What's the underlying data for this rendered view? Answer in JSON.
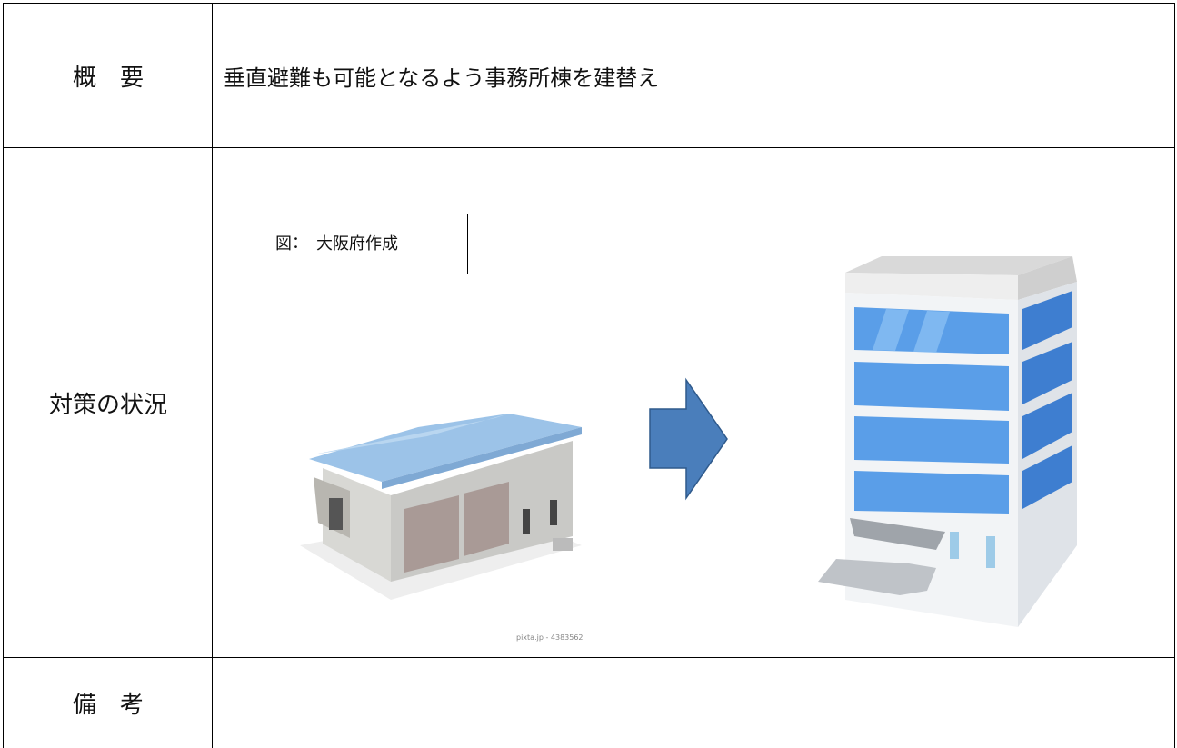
{
  "table": {
    "rows": [
      {
        "label": "概　要",
        "content": "垂直避難も可能となるよう事務所棟を建替え"
      },
      {
        "label": "対策の状況",
        "figure_caption": "図：　大阪府作成",
        "image_credit": "pixta.jp - 4383562"
      },
      {
        "label": "備　考"
      }
    ]
  }
}
